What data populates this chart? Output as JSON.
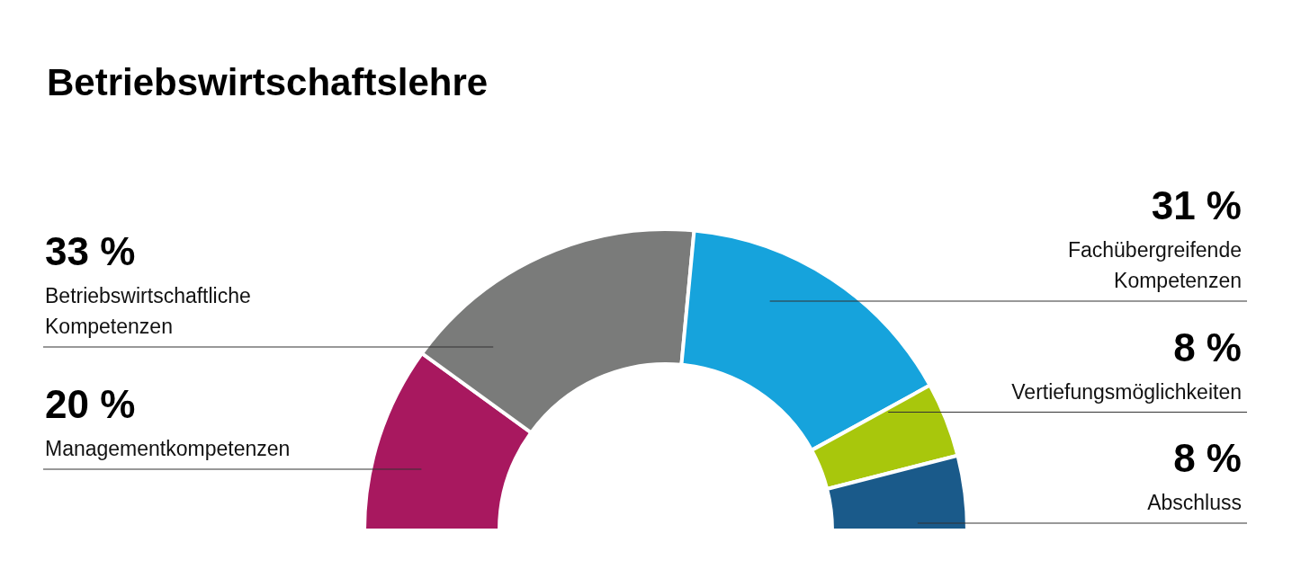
{
  "chart_data": {
    "type": "donut",
    "title": "Betriebswirtschaftslehre",
    "categories": [
      "Managementkompetenzen",
      "Betriebswirtschaftliche Kompetenzen",
      "Fachübergreifende Kompetenzen",
      "Vertiefungsmöglichkeiten",
      "Abschluss"
    ],
    "values": [
      20,
      33,
      31,
      8,
      8
    ],
    "colors": [
      "#a8185f",
      "#7a7b7a",
      "#16a3dc",
      "#a8c70c",
      "#1a5a8a"
    ],
    "value_labels": [
      "20 %",
      "33 %",
      "31 %",
      "8 %",
      "8 %"
    ]
  }
}
